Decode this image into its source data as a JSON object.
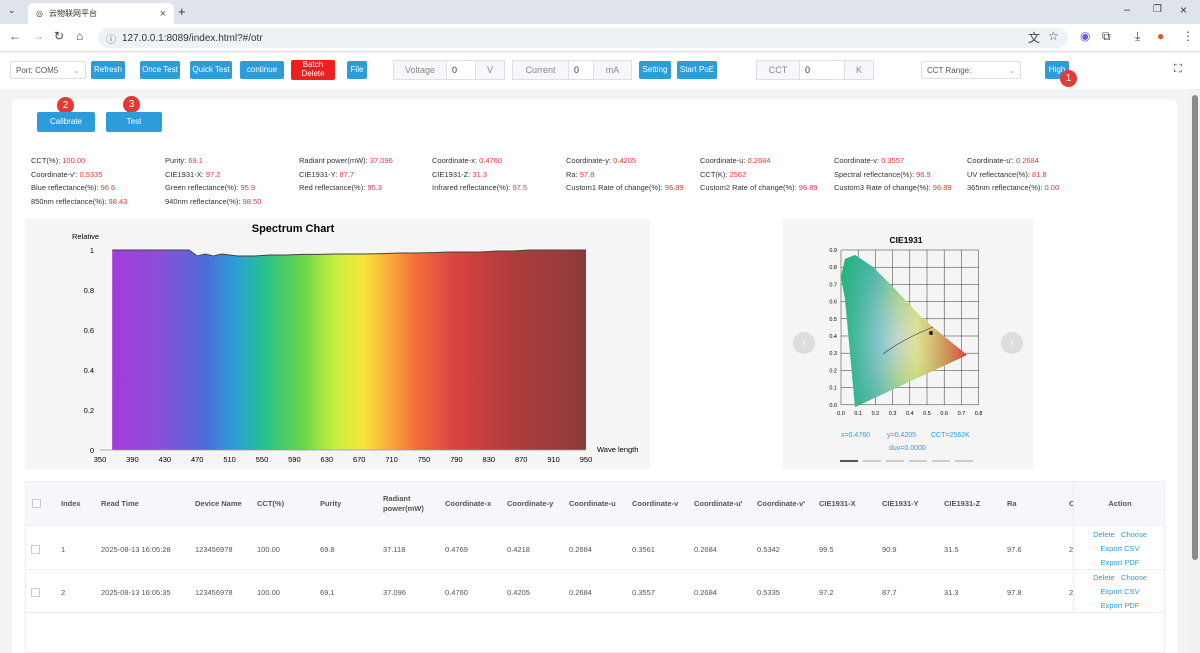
{
  "browser": {
    "tab_title": "云物联网平台",
    "url": "127.0.0.1:8089/index.html?#/otr"
  },
  "toolbar": {
    "port": "Port: COM5",
    "refresh": "Refresh",
    "once_test": "Once Test",
    "quick_test": "Quick Test",
    "continue": "continue",
    "batch_delete": "Batch Delete",
    "file": "File",
    "voltage_label": "Voltage",
    "voltage_value": "0",
    "voltage_unit": "V",
    "current_label": "Current",
    "current_value": "0",
    "current_unit": "mA",
    "setting": "Setting",
    "start_poe": "Start PoE",
    "cct_label": "CCT",
    "cct_value": "0",
    "cct_unit": "K",
    "cct_range_placeholder": "CCT Range:",
    "high": "High"
  },
  "badges": {
    "b1": "1",
    "b2": "2",
    "b3": "3"
  },
  "actions": {
    "calibrate": "Calibrate",
    "test": "Test"
  },
  "info": [
    [
      "CCT(%): ",
      "100.00"
    ],
    [
      "Purity: ",
      "69.1"
    ],
    [
      "Radiant power(mW): ",
      "37.096"
    ],
    [
      "Coordinate-x: ",
      "0.4760"
    ],
    [
      "Coordinate-y: ",
      "0.4205"
    ],
    [
      "Coordinate-u: ",
      "0.2684"
    ],
    [
      "Coordinate-v: ",
      "0.3557"
    ],
    [
      "Coordinate-u': ",
      "0.2684"
    ],
    [
      "Coordinate-v': ",
      "0.5335"
    ],
    [
      "CIE1931-X: ",
      "97.2"
    ],
    [
      "CIE1931-Y: ",
      "87.7"
    ],
    [
      "CIE1931-Z: ",
      "31.3"
    ],
    [
      "Ra: ",
      "97.8"
    ],
    [
      "CCT(K): ",
      "2562"
    ],
    [
      "Spectral reflectance(%): ",
      "96.9"
    ],
    [
      "UV reflectance(%): ",
      "81.8"
    ],
    [
      "Blue reflectance(%): ",
      "96.6"
    ],
    [
      "Green reflectance(%): ",
      "95.9"
    ],
    [
      "Red reflectance(%): ",
      "95.3"
    ],
    [
      "Infrared reflectance(%): ",
      "97.5"
    ],
    [
      "Custom1 Rate of change(%): ",
      "96.89"
    ],
    [
      "Custom2 Rate of change(%): ",
      "96.89"
    ],
    [
      "Custom3 Rate of change(%): ",
      "96.89"
    ],
    [
      "365nm reflectance(%): ",
      "0.00"
    ],
    [
      "850nm reflectance(%): ",
      "98.43"
    ],
    [
      "940nm reflectance(%): ",
      "98.50"
    ]
  ],
  "chart_data": {
    "type": "area",
    "title": "Spectrum Chart",
    "ylabel": "Relative",
    "xlabel": "Wave length",
    "x_ticks": [
      350,
      390,
      430,
      470,
      510,
      550,
      590,
      630,
      670,
      710,
      750,
      790,
      830,
      870,
      910,
      950
    ],
    "y_ticks": [
      0,
      0.2,
      0.4,
      0.6,
      0.8,
      1
    ],
    "xlim": [
      350,
      950
    ],
    "ylim": [
      0,
      1
    ],
    "x": [
      365,
      380,
      400,
      420,
      440,
      460,
      470,
      480,
      490,
      500,
      520,
      540,
      560,
      580,
      600,
      620,
      640,
      660,
      680,
      700,
      720,
      740,
      760,
      780,
      800,
      820,
      840,
      860,
      880,
      900,
      920,
      940,
      950
    ],
    "y": [
      1,
      1,
      1,
      1,
      1,
      1,
      0.97,
      0.98,
      0.97,
      0.98,
      0.97,
      0.97,
      0.975,
      0.975,
      0.978,
      0.978,
      0.98,
      0.98,
      0.98,
      0.982,
      0.985,
      0.985,
      0.987,
      0.99,
      0.99,
      0.99,
      0.995,
      0.995,
      1,
      1,
      1,
      1,
      1
    ]
  },
  "cie": {
    "title": "CIE1931",
    "x": "x=0.4760",
    "y": "y=0.4205",
    "cct": "CCT=2562K",
    "duv": "duv=0.0000",
    "x_ticks": [
      "0.0",
      "0.1",
      "0.2",
      "0.3",
      "0.4",
      "0.5",
      "0.6",
      "0.7",
      "0.8"
    ],
    "y_ticks": [
      "0.9",
      "0.8",
      "0.7",
      "0.6",
      "0.5",
      "0.4",
      "0.3",
      "0.2",
      "0.1",
      "0.0"
    ]
  },
  "table": {
    "headers": [
      "Index",
      "Read Time",
      "Device Name",
      "CCT(%)",
      "Purity",
      "Radiant power(mW)",
      "Coordinate-x",
      "Coordinate-y",
      "Coordinate-u",
      "Coordinate-v",
      "Coordinate-u'",
      "Coordinate-v'",
      "CIE1931-X",
      "CIE1931-Y",
      "CIE1931-Z",
      "Ra",
      "C",
      "Action"
    ],
    "rows": [
      [
        "1",
        "2025-08-13 16:05:28",
        "123456978",
        "100.00",
        "69.8",
        "37.118",
        "0.4769",
        "0.4218",
        "0.2684",
        "0.3561",
        "0.2684",
        "0.5342",
        "99.5",
        "90.9",
        "31.5",
        "97.6",
        "2"
      ],
      [
        "2",
        "2025-08-13 16:05:35",
        "123456978",
        "100.00",
        "69.1",
        "37.096",
        "0.4760",
        "0.4205",
        "0.2684",
        "0.3557",
        "0.2684",
        "0.5335",
        "97.2",
        "87.7",
        "31.3",
        "97.8",
        "2"
      ]
    ],
    "action_links": {
      "delete": "Delete",
      "choose": "Choose",
      "export_csv": "Export CSV",
      "export_pdf": "Export PDF"
    }
  }
}
